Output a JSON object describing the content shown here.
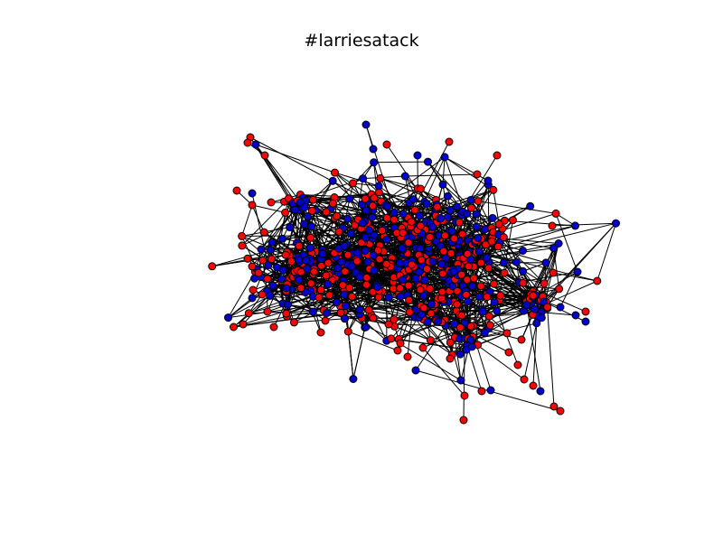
{
  "figure": {
    "title": "#larriesatack"
  },
  "network": {
    "type": "force-directed graph",
    "node_colors": [
      "#ff0000",
      "#0000cc"
    ],
    "node_outline_color": "#000000",
    "edge_color": "#000000",
    "background": "#ffffff"
  }
}
